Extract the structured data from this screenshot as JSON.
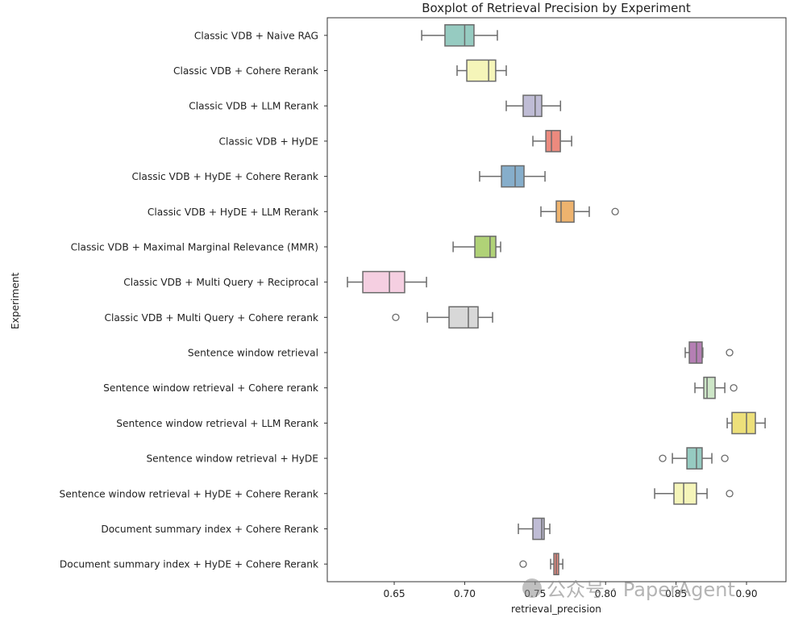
{
  "chart_data": {
    "type": "boxplot",
    "orientation": "horizontal",
    "title": "Boxplot of Retrieval Precision by Experiment",
    "xlabel": "retrieval_precision",
    "ylabel": "Experiment",
    "xlim": [
      0.6025,
      0.928
    ],
    "xticks": [
      0.65,
      0.7,
      0.75,
      0.8,
      0.85,
      0.9
    ],
    "xtick_labels": [
      "0.65",
      "0.70",
      "0.75",
      "0.80",
      "0.85",
      "0.90"
    ],
    "grid": false,
    "legend": "none",
    "series": [
      {
        "name": "Classic VDB + Naive RAG",
        "color": "#96cbc1",
        "whisker_low": 0.6695,
        "q1": 0.686,
        "median": 0.7,
        "q3": 0.7066,
        "whisker_high": 0.7232,
        "outliers": []
      },
      {
        "name": "Classic VDB + Cohere Rerank",
        "color": "#f5f5b9",
        "whisker_low": 0.6946,
        "q1": 0.7015,
        "median": 0.717,
        "q3": 0.722,
        "whisker_high": 0.7295,
        "outliers": []
      },
      {
        "name": "Classic VDB + LLM Rerank",
        "color": "#bfbcd5",
        "whisker_low": 0.7295,
        "q1": 0.7415,
        "median": 0.75,
        "q3": 0.7547,
        "whisker_high": 0.768,
        "outliers": []
      },
      {
        "name": "Classic VDB + HyDE",
        "color": "#ec8a7e",
        "whisker_low": 0.7484,
        "q1": 0.7576,
        "median": 0.7616,
        "q3": 0.7679,
        "whisker_high": 0.7759,
        "outliers": []
      },
      {
        "name": "Classic VDB + HyDE + Cohere Rerank",
        "color": "#86aecb",
        "whisker_low": 0.7106,
        "q1": 0.7261,
        "median": 0.7358,
        "q3": 0.7421,
        "whisker_high": 0.757,
        "outliers": []
      },
      {
        "name": "Classic VDB + HyDE + LLM Rerank",
        "color": "#eeb36e",
        "whisker_low": 0.7541,
        "q1": 0.765,
        "median": 0.7684,
        "q3": 0.7776,
        "whisker_high": 0.7884,
        "outliers": [
          0.8068
        ]
      },
      {
        "name": "Classic VDB + Maximal Marginal Relevance (MMR)",
        "color": "#b0d277",
        "whisker_low": 0.6918,
        "q1": 0.7072,
        "median": 0.718,
        "q3": 0.7221,
        "whisker_high": 0.7255,
        "outliers": []
      },
      {
        "name": "Classic VDB + Multi Query + Reciprocal",
        "color": "#f5cfe1",
        "whisker_low": 0.6168,
        "q1": 0.6277,
        "median": 0.6466,
        "q3": 0.6574,
        "whisker_high": 0.6729,
        "outliers": []
      },
      {
        "name": "Classic VDB + Multi Query + Cohere rerank",
        "color": "#d8d8d8",
        "whisker_low": 0.6735,
        "q1": 0.6889,
        "median": 0.7026,
        "q3": 0.7095,
        "whisker_high": 0.7198,
        "outliers": [
          0.6511
        ]
      },
      {
        "name": "Sentence window retrieval",
        "color": "#b57fb4",
        "whisker_low": 0.8565,
        "q1": 0.8594,
        "median": 0.8645,
        "q3": 0.8685,
        "whisker_high": 0.869,
        "outliers": [
          0.888
        ]
      },
      {
        "name": "Sentence window retrieval + Cohere rerank",
        "color": "#cde6c7",
        "whisker_low": 0.8634,
        "q1": 0.8697,
        "median": 0.872,
        "q3": 0.8777,
        "whisker_high": 0.8846,
        "outliers": [
          0.8909
        ]
      },
      {
        "name": "Sentence window retrieval + LLM Rerank",
        "color": "#ede07a",
        "whisker_low": 0.8863,
        "q1": 0.8897,
        "median": 0.9,
        "q3": 0.9063,
        "whisker_high": 0.9132,
        "outliers": []
      },
      {
        "name": "Sentence window retrieval + HyDE",
        "color": "#96cbc1",
        "whisker_low": 0.8474,
        "q1": 0.8577,
        "median": 0.8645,
        "q3": 0.8685,
        "whisker_high": 0.8754,
        "outliers": [
          0.8405,
          0.8846
        ]
      },
      {
        "name": "Sentence window retrieval + HyDE + Cohere Rerank",
        "color": "#f5f5b9",
        "whisker_low": 0.8348,
        "q1": 0.8485,
        "median": 0.8554,
        "q3": 0.8645,
        "whisker_high": 0.872,
        "outliers": [
          0.888
        ]
      },
      {
        "name": "Document summary index + Cohere Rerank",
        "color": "#bfbcd5",
        "whisker_low": 0.7381,
        "q1": 0.7484,
        "median": 0.7547,
        "q3": 0.7564,
        "whisker_high": 0.7604,
        "outliers": []
      },
      {
        "name": "Document summary index + HyDE + Cohere Rerank",
        "color": "#ec8a7e",
        "whisker_low": 0.761,
        "q1": 0.7633,
        "median": 0.765,
        "q3": 0.7667,
        "whisker_high": 0.7696,
        "outliers": [
          0.7415
        ]
      }
    ]
  },
  "watermark": {
    "text": "公众号 · PaperAgent"
  }
}
